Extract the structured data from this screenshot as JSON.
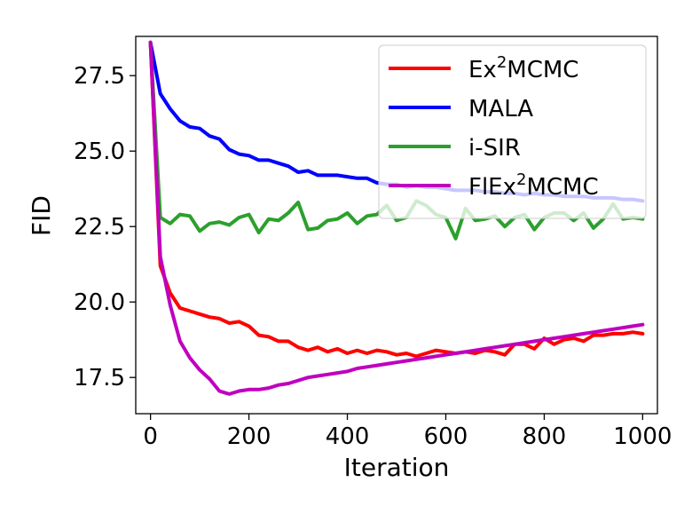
{
  "chart_data": {
    "type": "line",
    "title": "",
    "xlabel": "Iteration",
    "ylabel": "FID",
    "xlim": [
      -30,
      1030
    ],
    "ylim": [
      16.3,
      28.8
    ],
    "xticks": [
      0,
      200,
      400,
      600,
      800,
      1000
    ],
    "yticks": [
      17.5,
      20.0,
      22.5,
      25.0,
      27.5
    ],
    "xtick_labels": [
      "0",
      "200",
      "400",
      "600",
      "800",
      "1000"
    ],
    "ytick_labels": [
      "17.5",
      "20.0",
      "22.5",
      "25.0",
      "27.5"
    ],
    "grid": false,
    "legend": {
      "position": "upper-right",
      "entries": [
        {
          "base": "Ex",
          "sup": "2",
          "rest": "MCMC"
        },
        {
          "base": "MALA",
          "sup": "",
          "rest": ""
        },
        {
          "base": "i-SIR",
          "sup": "",
          "rest": ""
        },
        {
          "base": "FlEx",
          "sup": "2",
          "rest": "MCMC"
        }
      ]
    },
    "x": [
      0,
      20,
      40,
      60,
      80,
      100,
      120,
      140,
      160,
      180,
      200,
      220,
      240,
      260,
      280,
      300,
      320,
      340,
      360,
      380,
      400,
      420,
      440,
      460,
      480,
      500,
      520,
      540,
      560,
      580,
      600,
      620,
      640,
      660,
      680,
      700,
      720,
      740,
      760,
      780,
      800,
      820,
      840,
      860,
      880,
      900,
      920,
      940,
      960,
      980,
      1000
    ],
    "series": [
      {
        "color": "#ff0000",
        "values": [
          28.6,
          21.2,
          20.3,
          19.8,
          19.7,
          19.6,
          19.5,
          19.45,
          19.3,
          19.35,
          19.2,
          18.9,
          18.85,
          18.7,
          18.7,
          18.5,
          18.4,
          18.5,
          18.35,
          18.45,
          18.3,
          18.4,
          18.3,
          18.4,
          18.35,
          18.25,
          18.3,
          18.2,
          18.3,
          18.4,
          18.35,
          18.3,
          18.35,
          18.3,
          18.4,
          18.35,
          18.25,
          18.6,
          18.6,
          18.45,
          18.8,
          18.6,
          18.75,
          18.8,
          18.7,
          18.9,
          18.9,
          18.95,
          18.95,
          19.0,
          18.95
        ]
      },
      {
        "color": "#0000ff",
        "values": [
          28.6,
          26.9,
          26.4,
          26.0,
          25.8,
          25.75,
          25.5,
          25.4,
          25.05,
          24.9,
          24.85,
          24.7,
          24.7,
          24.6,
          24.5,
          24.3,
          24.35,
          24.2,
          24.2,
          24.2,
          24.15,
          24.1,
          24.1,
          23.95,
          23.9,
          23.9,
          23.8,
          23.85,
          23.8,
          23.8,
          23.75,
          23.7,
          23.7,
          23.7,
          23.65,
          23.65,
          23.6,
          23.6,
          23.55,
          23.6,
          23.55,
          23.55,
          23.5,
          23.5,
          23.5,
          23.45,
          23.45,
          23.45,
          23.4,
          23.4,
          23.35
        ]
      },
      {
        "color": "#2ca02c",
        "values": [
          28.6,
          22.8,
          22.6,
          22.9,
          22.85,
          22.35,
          22.6,
          22.65,
          22.55,
          22.8,
          22.9,
          22.3,
          22.75,
          22.7,
          22.95,
          23.3,
          22.4,
          22.45,
          22.7,
          22.75,
          22.95,
          22.6,
          22.85,
          22.9,
          23.2,
          22.7,
          22.8,
          23.35,
          23.2,
          22.9,
          22.8,
          22.1,
          23.1,
          22.7,
          22.75,
          22.85,
          22.5,
          22.8,
          22.9,
          22.4,
          22.8,
          22.95,
          22.95,
          22.7,
          22.95,
          22.45,
          22.75,
          23.25,
          22.75,
          22.8,
          22.75
        ]
      },
      {
        "color": "#bf00bf",
        "values": [
          28.6,
          21.5,
          19.9,
          18.7,
          18.15,
          17.75,
          17.45,
          17.05,
          16.95,
          17.05,
          17.1,
          17.1,
          17.15,
          17.25,
          17.3,
          17.4,
          17.5,
          17.55,
          17.6,
          17.65,
          17.7,
          17.8,
          17.85,
          17.9,
          17.95,
          18.0,
          18.05,
          18.1,
          18.15,
          18.2,
          18.25,
          18.3,
          18.35,
          18.4,
          18.45,
          18.5,
          18.55,
          18.6,
          18.65,
          18.7,
          18.75,
          18.8,
          18.85,
          18.9,
          18.95,
          19.0,
          19.05,
          19.1,
          19.15,
          19.2,
          19.25
        ]
      }
    ]
  }
}
